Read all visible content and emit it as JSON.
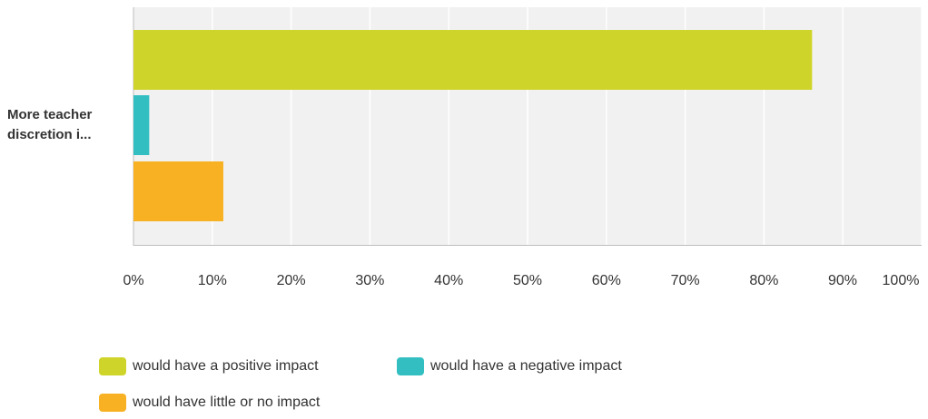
{
  "chart_data": {
    "type": "bar",
    "orientation": "horizontal",
    "categories": [
      "More teacher discretion i..."
    ],
    "series": [
      {
        "name": "would have a positive impact",
        "values": [
          86.1
        ],
        "color": "#cfd42a"
      },
      {
        "name": "would have a negative impact",
        "values": [
          2.0
        ],
        "color": "#33bfc1"
      },
      {
        "name": "would have little or no impact",
        "values": [
          11.4
        ],
        "color": "#f7b122"
      }
    ],
    "xticks": [
      "0%",
      "10%",
      "20%",
      "30%",
      "40%",
      "50%",
      "60%",
      "70%",
      "80%",
      "90%",
      "100%"
    ],
    "xlim": [
      0,
      100
    ],
    "grid": true,
    "legend_position": "bottom"
  }
}
